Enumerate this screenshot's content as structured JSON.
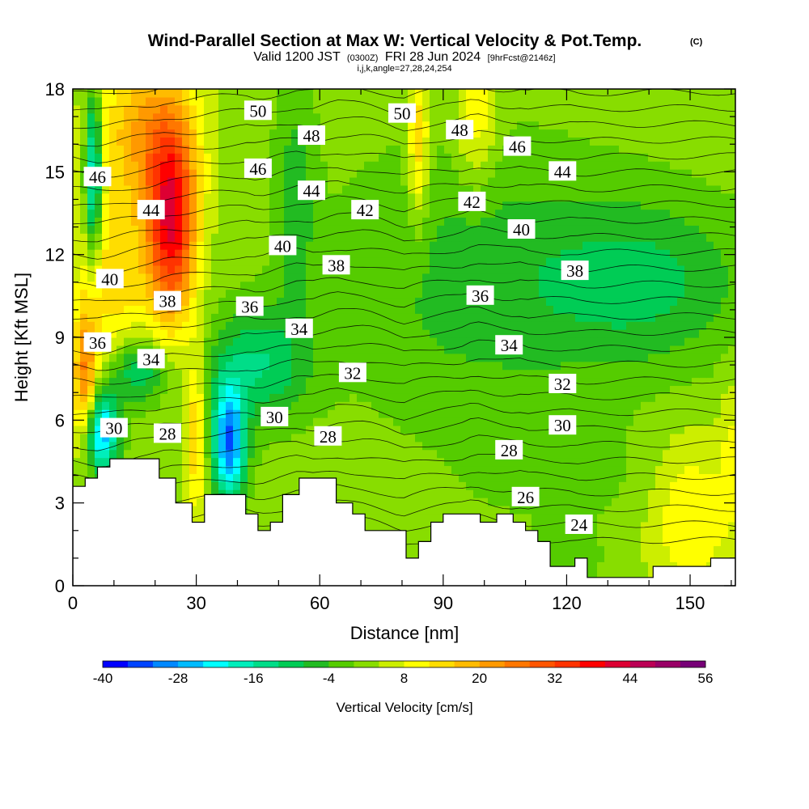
{
  "chart_data": {
    "type": "contour",
    "title": "Wind-Parallel Section at Max W: Vertical Velocity & Pot.Temp.",
    "copyright_mark": "(C)",
    "subtitle": {
      "valid": "Valid 1200 JST",
      "utc": "(0300Z)",
      "date": "FRI 28 Jun 2024",
      "forecast": "[9hrFcst@2146z]"
    },
    "grid_info": "i,j,k,angle=27,28,24,254",
    "xlabel": "Distance [nm]",
    "ylabel": "Height [Kft MSL]",
    "xlim": [
      0,
      161
    ],
    "ylim": [
      0,
      18
    ],
    "x_ticks": [
      0,
      30,
      60,
      90,
      120,
      150
    ],
    "y_ticks": [
      0,
      3,
      6,
      9,
      12,
      15,
      18
    ],
    "colorbar": {
      "label": "Vertical Velocity [cm/s]",
      "levels": [
        -40,
        -36,
        -32,
        -28,
        -24,
        -20,
        -16,
        -12,
        -8,
        -4,
        0,
        4,
        8,
        12,
        16,
        20,
        24,
        28,
        32,
        36,
        40,
        44,
        48,
        52,
        56
      ],
      "tick_labels": [
        "-40",
        "-28",
        "-16",
        "-4",
        "8",
        "20",
        "32",
        "44",
        "56"
      ],
      "colors": [
        "#0000ff",
        "#0044ff",
        "#0088ff",
        "#00bbff",
        "#00ffff",
        "#00eebb",
        "#00dd88",
        "#00cc55",
        "#22bb22",
        "#55cc00",
        "#88dd00",
        "#ccee00",
        "#ffff00",
        "#ffdd00",
        "#ffbb00",
        "#ff9900",
        "#ff7700",
        "#ff5500",
        "#ff3300",
        "#ff0000",
        "#dd0033",
        "#bb0055",
        "#990066",
        "#770077"
      ]
    },
    "terrain_profile_kft": [
      [
        0,
        3.6
      ],
      [
        3,
        3.6
      ],
      [
        3,
        3.9
      ],
      [
        6,
        3.9
      ],
      [
        6,
        4.3
      ],
      [
        9,
        4.3
      ],
      [
        9,
        4.6
      ],
      [
        21,
        4.6
      ],
      [
        21,
        3.9
      ],
      [
        25,
        3.9
      ],
      [
        25,
        3.0
      ],
      [
        29,
        3.0
      ],
      [
        29,
        2.3
      ],
      [
        32,
        2.3
      ],
      [
        32,
        3.3
      ],
      [
        42,
        3.3
      ],
      [
        42,
        2.6
      ],
      [
        45,
        2.6
      ],
      [
        45,
        2.0
      ],
      [
        48,
        2.0
      ],
      [
        48,
        2.3
      ],
      [
        51,
        2.3
      ],
      [
        51,
        3.3
      ],
      [
        55,
        3.3
      ],
      [
        55,
        3.9
      ],
      [
        64,
        3.9
      ],
      [
        64,
        3.0
      ],
      [
        68,
        3.0
      ],
      [
        68,
        2.6
      ],
      [
        71,
        2.6
      ],
      [
        71,
        2.0
      ],
      [
        81,
        2.0
      ],
      [
        81,
        1.0
      ],
      [
        84,
        1.0
      ],
      [
        84,
        1.6
      ],
      [
        87,
        1.6
      ],
      [
        87,
        2.3
      ],
      [
        90,
        2.3
      ],
      [
        90,
        2.6
      ],
      [
        99,
        2.6
      ],
      [
        99,
        2.3
      ],
      [
        103,
        2.3
      ],
      [
        103,
        2.6
      ],
      [
        107,
        2.6
      ],
      [
        107,
        2.3
      ],
      [
        110,
        2.3
      ],
      [
        110,
        2.0
      ],
      [
        113,
        2.0
      ],
      [
        113,
        1.6
      ],
      [
        116,
        1.6
      ],
      [
        116,
        0.7
      ],
      [
        122,
        0.7
      ],
      [
        122,
        1.0
      ],
      [
        125,
        1.0
      ],
      [
        125,
        0.3
      ],
      [
        141,
        0.3
      ],
      [
        141,
        0.7
      ],
      [
        155,
        0.7
      ],
      [
        155,
        1.0
      ],
      [
        161,
        1.0
      ]
    ],
    "w_features": [
      {
        "x": 24,
        "y": 13.0,
        "sx": 6,
        "sy": 3.5,
        "w": 36
      },
      {
        "x": 18,
        "y": 16.5,
        "sx": 12,
        "sy": 3,
        "w": 18
      },
      {
        "x": 3,
        "y": 7.5,
        "sx": 3,
        "sy": 2.5,
        "w": 22
      },
      {
        "x": 10,
        "y": 11,
        "sx": 9,
        "sy": 3,
        "w": 12
      },
      {
        "x": 30,
        "y": 5.5,
        "sx": 2.5,
        "sy": 3,
        "w": 14
      },
      {
        "x": 5,
        "y": 15,
        "sx": 2,
        "sy": 3,
        "w": -26
      },
      {
        "x": 7,
        "y": 5.6,
        "sx": 4,
        "sy": 1.5,
        "w": -30
      },
      {
        "x": 16,
        "y": 7.8,
        "sx": 6,
        "sy": 1.2,
        "w": -16
      },
      {
        "x": 38,
        "y": 5.2,
        "sx": 4,
        "sy": 2,
        "w": -34
      },
      {
        "x": 45,
        "y": 8,
        "sx": 12,
        "sy": 2,
        "w": -14
      },
      {
        "x": 84,
        "y": 16,
        "sx": 2.5,
        "sy": 3,
        "w": 14
      },
      {
        "x": 98,
        "y": 17,
        "sx": 5,
        "sy": 2.5,
        "w": 10
      },
      {
        "x": 54,
        "y": 14,
        "sx": 5,
        "sy": 4,
        "w": -8
      },
      {
        "x": 100,
        "y": 11,
        "sx": 35,
        "sy": 5,
        "w": -8
      },
      {
        "x": 140,
        "y": 11,
        "sx": 25,
        "sy": 3,
        "w": -10
      },
      {
        "x": 150,
        "y": 2.5,
        "sx": 10,
        "sy": 3,
        "w": 10
      },
      {
        "x": 120,
        "y": 4,
        "sx": 25,
        "sy": 2,
        "w": -3
      },
      {
        "x": 160,
        "y": 5,
        "sx": 3,
        "sy": 3,
        "w": 6
      },
      {
        "x": 120,
        "y": 1.0,
        "sx": 8,
        "sy": 1.0,
        "w": -5
      }
    ],
    "theta_contours": {
      "interval": 2,
      "labels": [
        {
          "x": 45,
          "y": 17.2,
          "text": "50"
        },
        {
          "x": 80,
          "y": 17.1,
          "text": "50"
        },
        {
          "x": 58,
          "y": 16.3,
          "text": "48"
        },
        {
          "x": 94,
          "y": 16.5,
          "text": "48"
        },
        {
          "x": 6,
          "y": 14.8,
          "text": "46"
        },
        {
          "x": 45,
          "y": 15.1,
          "text": "46"
        },
        {
          "x": 108,
          "y": 15.9,
          "text": "46"
        },
        {
          "x": 19,
          "y": 13.6,
          "text": "44"
        },
        {
          "x": 58,
          "y": 14.3,
          "text": "44"
        },
        {
          "x": 119,
          "y": 15.0,
          "text": "44"
        },
        {
          "x": 71,
          "y": 13.6,
          "text": "42"
        },
        {
          "x": 97,
          "y": 13.9,
          "text": "42"
        },
        {
          "x": 51,
          "y": 12.3,
          "text": "40"
        },
        {
          "x": 9,
          "y": 11.1,
          "text": "40"
        },
        {
          "x": 109,
          "y": 12.9,
          "text": "40"
        },
        {
          "x": 64,
          "y": 11.6,
          "text": "38"
        },
        {
          "x": 23,
          "y": 10.3,
          "text": "38"
        },
        {
          "x": 122,
          "y": 11.4,
          "text": "38"
        },
        {
          "x": 43,
          "y": 10.1,
          "text": "36"
        },
        {
          "x": 6,
          "y": 8.8,
          "text": "36"
        },
        {
          "x": 99,
          "y": 10.5,
          "text": "36"
        },
        {
          "x": 55,
          "y": 9.3,
          "text": "34"
        },
        {
          "x": 19,
          "y": 8.2,
          "text": "34"
        },
        {
          "x": 106,
          "y": 8.7,
          "text": "34"
        },
        {
          "x": 68,
          "y": 7.7,
          "text": "32"
        },
        {
          "x": 119,
          "y": 7.3,
          "text": "32"
        },
        {
          "x": 49,
          "y": 6.1,
          "text": "30"
        },
        {
          "x": 10,
          "y": 5.7,
          "text": "30"
        },
        {
          "x": 119,
          "y": 5.8,
          "text": "30"
        },
        {
          "x": 62,
          "y": 5.4,
          "text": "28"
        },
        {
          "x": 23,
          "y": 5.5,
          "text": "28"
        },
        {
          "x": 106,
          "y": 4.9,
          "text": "28"
        },
        {
          "x": 110,
          "y": 3.2,
          "text": "26"
        },
        {
          "x": 123,
          "y": 2.2,
          "text": "24"
        }
      ]
    }
  }
}
